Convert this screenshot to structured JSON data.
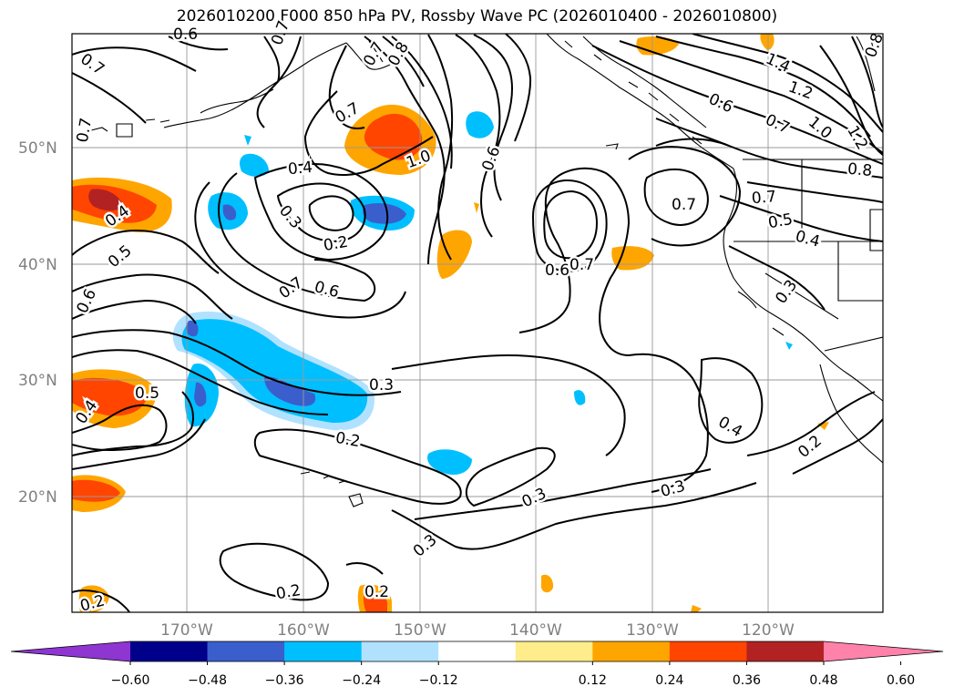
{
  "title": "2026010200 F000 850 hPa PV, Rossby Wave PC (2026010400 - 2026010800)",
  "lat_ticks": [
    "50°N",
    "40°N",
    "30°N",
    "20°N"
  ],
  "lon_ticks": [
    "170°W",
    "160°W",
    "150°W",
    "140°W",
    "130°W",
    "120°W"
  ],
  "colorbar": {
    "tick_labels": [
      "−0.60",
      "−0.48",
      "−0.36",
      "−0.24",
      "−0.12",
      "0.12",
      "0.24",
      "0.36",
      "0.48",
      "0.60"
    ],
    "colors": [
      "#8e35d2",
      "#00008b",
      "#3a5fcd",
      "#00bfff",
      "#b0e2ff",
      "#ffffff",
      "#ffec8b",
      "#ffa500",
      "#ff4500",
      "#b22222",
      "#ff82ab"
    ]
  },
  "contour_labels": {
    "l1": "0.6",
    "l2": "0.7",
    "l3": "0.8",
    "l4": "0.7",
    "l5": "1.0",
    "l6": "0.6",
    "l7": "1.4",
    "l8": "1.2",
    "l9": "0.6",
    "l10": "0.7",
    "l11": "1.0",
    "l12": "1.2",
    "l13": "0.8",
    "l14": "0.7",
    "l15": "0.5",
    "l16": "0.4",
    "l17": "0.4",
    "l18": "0.5",
    "l19": "0.6",
    "l20": "0.4",
    "l21": "0.3",
    "l22": "0.2",
    "l23": "0.7",
    "l24": "0.6",
    "l25": "0.6",
    "l26": "0.7",
    "l27": "0.7",
    "l28": "0.3",
    "l29": "0.4",
    "l30": "0.5",
    "l31": "0.3",
    "l32": "0.2",
    "l33": "0.4",
    "l34": "0.2",
    "l35": "0.3",
    "l36": "0.3",
    "l37": "0.3",
    "l38": "0.2",
    "l39": "0.2",
    "l40": "0.2",
    "l41": "0.7",
    "l42": "0.7",
    "l43": "0.7",
    "l44": "0.8"
  }
}
